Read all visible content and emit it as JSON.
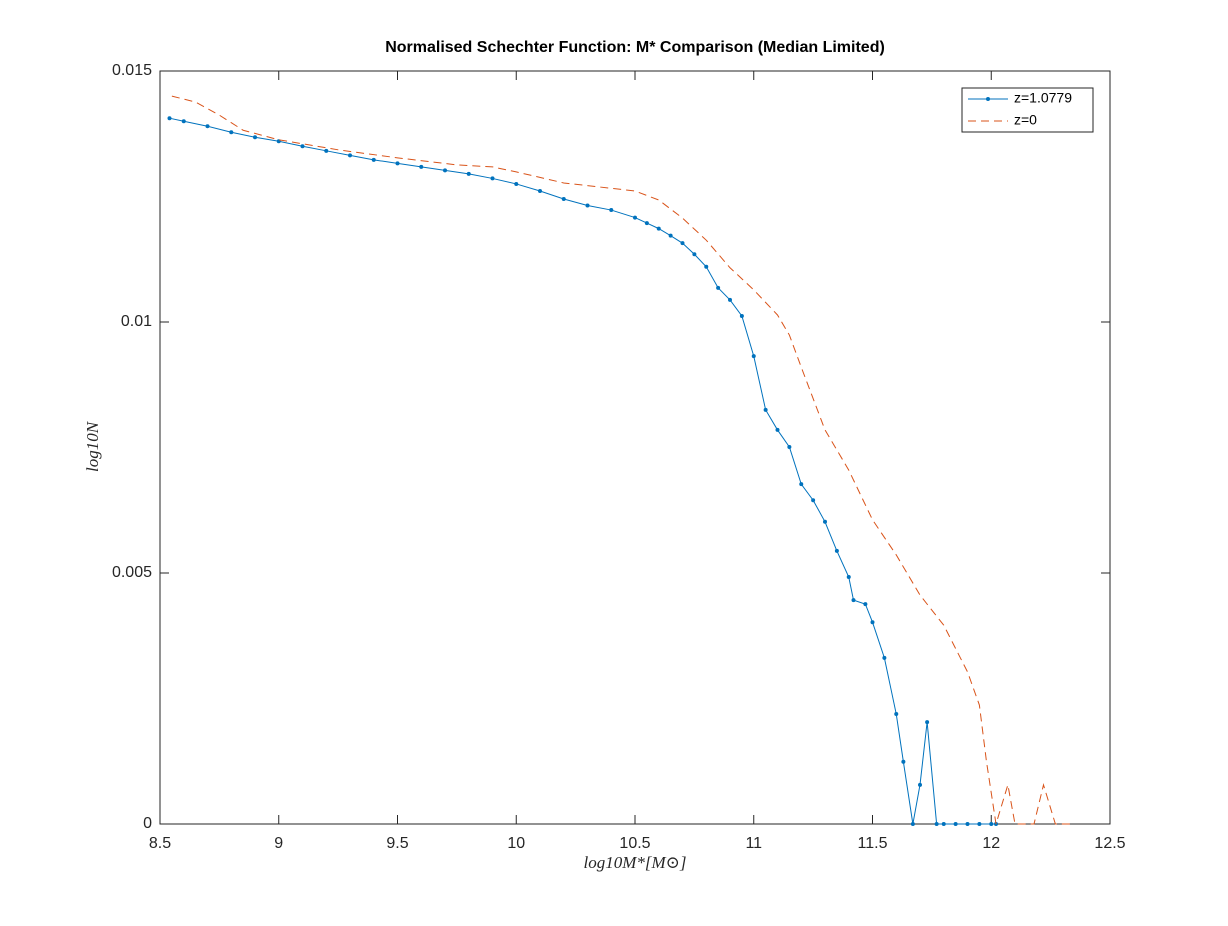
{
  "chart_data": {
    "type": "line",
    "title": "Normalised Schechter Function: M* Comparison (Median Limited)",
    "xlabel": "log10M*[M⊙]",
    "ylabel": "log10N",
    "xlim": [
      8.5,
      12.5
    ],
    "xticks": [
      8.5,
      9,
      9.5,
      10,
      10.5,
      11,
      11.5,
      12,
      12.5
    ],
    "ylim": [
      0,
      0.015
    ],
    "yticks": [
      0,
      0.005,
      0.01,
      0.015
    ],
    "legend": "northeast",
    "grid": false,
    "series": [
      {
        "name": "z=1.0779",
        "color": "#0072BD",
        "marker": true,
        "dash": false,
        "x": [
          8.54,
          8.6,
          8.7,
          8.8,
          8.9,
          9.0,
          9.1,
          9.2,
          9.3,
          9.4,
          9.5,
          9.6,
          9.7,
          9.8,
          9.9,
          10.0,
          10.1,
          10.2,
          10.3,
          10.4,
          10.5,
          10.55,
          10.6,
          10.65,
          10.7,
          10.75,
          10.8,
          10.85,
          10.9,
          10.95,
          11.0,
          11.05,
          11.1,
          11.15,
          11.2,
          11.25,
          11.3,
          11.35,
          11.4,
          11.42,
          11.47,
          11.5,
          11.55,
          11.6,
          11.63,
          11.67,
          11.7,
          11.73,
          11.77,
          11.8,
          11.85,
          11.9,
          11.95,
          12.0,
          12.02
        ],
        "values": [
          0.01406,
          0.014,
          0.0139,
          0.01378,
          0.01368,
          0.0136,
          0.0135,
          0.01341,
          0.01332,
          0.01323,
          0.01316,
          0.01309,
          0.01302,
          0.01295,
          0.01286,
          0.01275,
          0.01261,
          0.01245,
          0.01232,
          0.01223,
          0.01208,
          0.01197,
          0.01186,
          0.01172,
          0.01157,
          0.01135,
          0.0111,
          0.01068,
          0.01044,
          0.01012,
          0.00932,
          0.00825,
          0.00785,
          0.00751,
          0.00677,
          0.00645,
          0.00602,
          0.00544,
          0.00492,
          0.00446,
          0.00438,
          0.00402,
          0.00331,
          0.00219,
          0.00124,
          0,
          0.00078,
          0.00203,
          0,
          0,
          0,
          0,
          0,
          0,
          0
        ]
      },
      {
        "name": "z=0",
        "color": "#D95319",
        "marker": false,
        "dash": true,
        "x": [
          8.55,
          8.65,
          8.75,
          8.85,
          9.0,
          9.25,
          9.5,
          9.75,
          9.9,
          10.0,
          10.2,
          10.35,
          10.5,
          10.6,
          10.7,
          10.8,
          10.9,
          11.0,
          11.1,
          11.15,
          11.2,
          11.3,
          11.4,
          11.5,
          11.6,
          11.7,
          11.8,
          11.9,
          11.95,
          11.98,
          12.02,
          12.07,
          12.1,
          12.18,
          12.22,
          12.27,
          12.34
        ],
        "values": [
          0.0145,
          0.01438,
          0.01412,
          0.01382,
          0.01363,
          0.01343,
          0.01327,
          0.01313,
          0.01309,
          0.01299,
          0.01277,
          0.01269,
          0.01261,
          0.01243,
          0.01207,
          0.01163,
          0.01108,
          0.01064,
          0.01014,
          0.00974,
          0.0091,
          0.00785,
          0.00705,
          0.00606,
          0.00536,
          0.00456,
          0.00396,
          0.00303,
          0.00237,
          0.00124,
          0,
          0.00078,
          0,
          0,
          0.00078,
          0,
          0
        ]
      }
    ]
  }
}
